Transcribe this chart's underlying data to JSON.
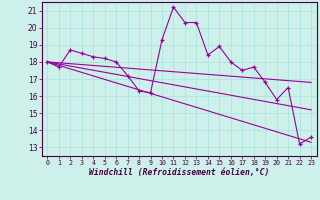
{
  "xlabel": "Windchill (Refroidissement éolien,°C)",
  "background_color": "#cef0ea",
  "grid_color": "#b0e8e0",
  "line_color": "#990099",
  "xlim": [
    -0.5,
    23.5
  ],
  "ylim": [
    12.5,
    21.5
  ],
  "yticks": [
    13,
    14,
    15,
    16,
    17,
    18,
    19,
    20,
    21
  ],
  "xticks": [
    0,
    1,
    2,
    3,
    4,
    5,
    6,
    7,
    8,
    9,
    10,
    11,
    12,
    13,
    14,
    15,
    16,
    17,
    18,
    19,
    20,
    21,
    22,
    23
  ],
  "series_main": {
    "x": [
      0,
      1,
      2,
      3,
      4,
      5,
      6,
      7,
      8,
      9,
      10,
      11,
      12,
      13,
      14,
      15,
      16,
      17,
      18,
      19,
      20,
      21,
      22,
      23
    ],
    "y": [
      18.0,
      17.7,
      18.7,
      18.5,
      18.3,
      18.2,
      18.0,
      17.2,
      16.3,
      16.2,
      19.3,
      21.2,
      20.3,
      20.3,
      18.4,
      18.9,
      18.0,
      17.5,
      17.7,
      16.8,
      15.8,
      16.5,
      13.2,
      13.6
    ]
  },
  "trend_lines": [
    {
      "x": [
        0,
        23
      ],
      "y": [
        18.0,
        13.3
      ]
    },
    {
      "x": [
        0,
        23
      ],
      "y": [
        18.0,
        15.2
      ]
    },
    {
      "x": [
        0,
        23
      ],
      "y": [
        18.0,
        16.8
      ]
    }
  ]
}
